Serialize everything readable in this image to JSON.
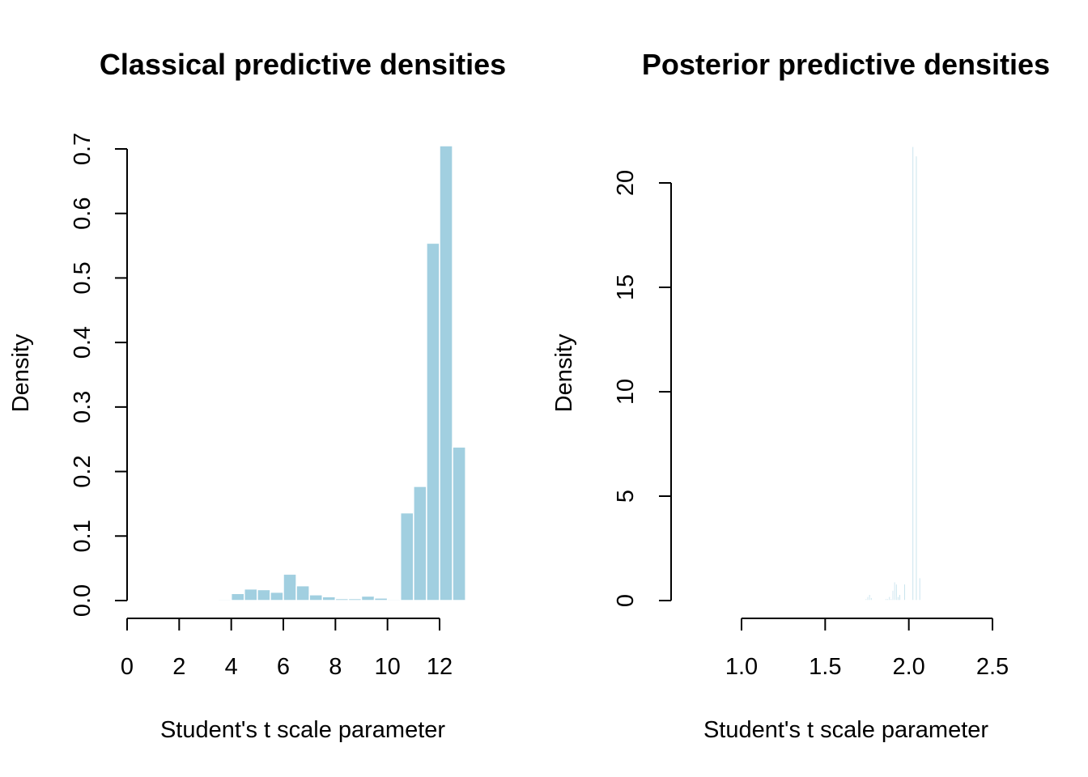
{
  "chart_data": [
    {
      "type": "bar",
      "title": "Classical predictive densities",
      "xlabel": "Student's t scale parameter",
      "ylabel": "Density",
      "bar_color": "#A1CFE0",
      "xlim": [
        0,
        13
      ],
      "ylim": [
        0,
        0.7
      ],
      "xticks": [
        0,
        2,
        4,
        6,
        8,
        10,
        12
      ],
      "yticks": [
        0.0,
        0.1,
        0.2,
        0.3,
        0.4,
        0.5,
        0.6,
        0.7
      ],
      "xtick_labels": [
        "0",
        "2",
        "4",
        "6",
        "8",
        "10",
        "12"
      ],
      "ytick_labels": [
        "0.0",
        "0.1",
        "0.2",
        "0.3",
        "0.4",
        "0.5",
        "0.6",
        "0.7"
      ],
      "bin_edges": [
        3.0,
        3.5,
        4.0,
        4.5,
        5.0,
        5.5,
        6.0,
        6.5,
        7.0,
        7.5,
        8.0,
        8.5,
        9.0,
        9.5,
        10.0,
        10.5,
        11.0,
        11.5,
        12.0,
        12.5,
        13.0
      ],
      "values": [
        0.001,
        0.002,
        0.011,
        0.018,
        0.017,
        0.013,
        0.041,
        0.023,
        0.009,
        0.006,
        0.003,
        0.003,
        0.007,
        0.004,
        0.002,
        0.136,
        0.177,
        0.554,
        0.705,
        0.238
      ]
    },
    {
      "type": "bar",
      "title": "Posterior predictive densities",
      "xlabel": "Student's t scale parameter",
      "ylabel": "Density",
      "bar_color": "#A1CFE0",
      "xlim": [
        1.0,
        2.5
      ],
      "ylim": [
        0,
        20
      ],
      "xticks": [
        1.0,
        1.5,
        2.0,
        2.5
      ],
      "yticks": [
        0,
        5,
        10,
        15,
        20
      ],
      "xtick_labels": [
        "1.0",
        "1.5",
        "2.0",
        "2.5"
      ],
      "ytick_labels": [
        "0",
        "5",
        "10",
        "15",
        "20"
      ],
      "bin_edges": [
        1.64,
        1.65,
        1.66,
        1.67,
        1.68,
        1.69,
        1.7,
        1.71,
        1.72,
        1.73,
        1.74,
        1.75,
        1.76,
        1.77,
        1.78,
        1.79,
        1.8,
        1.81,
        1.82,
        1.83,
        1.84,
        1.85,
        1.86,
        1.87,
        1.88,
        1.89,
        1.9,
        1.91,
        1.92,
        1.93,
        1.94,
        1.95,
        1.96,
        1.97,
        1.98,
        1.99,
        2.0,
        2.01,
        2.02,
        2.03,
        2.04,
        2.05,
        2.06,
        2.07
      ],
      "values": [
        0.05,
        0.0,
        0.0,
        0.0,
        0.0,
        0.0,
        0.0,
        0.0,
        0.0,
        0.05,
        0.1,
        0.2,
        0.3,
        0.15,
        0.05,
        0.0,
        0.0,
        0.0,
        0.0,
        0.0,
        0.0,
        0.0,
        0.1,
        0.1,
        0.2,
        0.1,
        0.5,
        0.9,
        0.8,
        0.2,
        0.3,
        0.0,
        0.0,
        0.8,
        0.0,
        0.0,
        0.0,
        0.0,
        21.75,
        0.0,
        21.3,
        0.0,
        1.1
      ]
    }
  ]
}
